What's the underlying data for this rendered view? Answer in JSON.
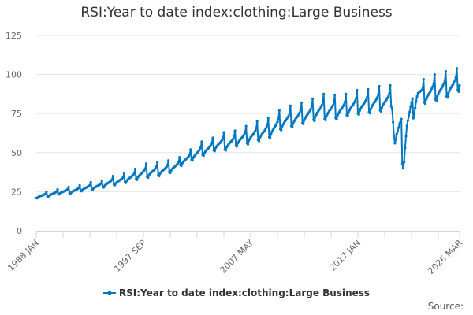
{
  "chart_data": {
    "type": "line",
    "title": "RSI:Year to date index:clothing:Large Business",
    "xlabel": "",
    "ylabel": "",
    "frequency": "monthly",
    "start": "1988 JAN",
    "end": "2026 MAR",
    "x_tick_labels": [
      "1988 JAN",
      "1997 SEP",
      "2007 MAY",
      "2017 JAN",
      "2026 MAR"
    ],
    "y_ticks": [
      0,
      25,
      50,
      75,
      100,
      125
    ],
    "ylim": [
      0,
      125
    ],
    "grid": "horizontal",
    "legend_position": "bottom",
    "series": [
      {
        "name": "RSI:Year to date index:clothing:Large Business",
        "color": "#0077c0",
        "values": [
          21,
          20.8,
          21.5,
          21.8,
          22.1,
          22.3,
          22.5,
          22.7,
          23,
          23.3,
          23.7,
          25,
          22,
          21.8,
          22.5,
          22.9,
          23.2,
          23.5,
          23.7,
          23.9,
          24.3,
          24.6,
          25.1,
          26.5,
          23.5,
          23.3,
          24,
          24.4,
          24.7,
          25,
          25.2,
          25.4,
          25.8,
          26.1,
          26.6,
          28,
          24,
          23.8,
          24.6,
          25,
          25.4,
          25.7,
          25.9,
          26.2,
          26.5,
          26.9,
          27.4,
          29,
          25.5,
          25.3,
          26.2,
          26.6,
          27,
          27.3,
          27.6,
          27.9,
          28.3,
          28.6,
          29.2,
          31,
          26.5,
          26.3,
          27.2,
          27.6,
          28,
          28.3,
          28.6,
          28.9,
          29.3,
          29.6,
          30.2,
          32,
          28,
          27.7,
          28.8,
          29.4,
          29.9,
          30.3,
          30.7,
          31,
          31.5,
          32,
          32.8,
          35,
          29.5,
          29.2,
          30.3,
          30.9,
          31.4,
          31.8,
          32.2,
          32.5,
          33,
          33.5,
          34.3,
          36.5,
          31,
          30.7,
          32,
          32.7,
          33.3,
          33.8,
          34.2,
          34.7,
          35.3,
          35.8,
          36.8,
          39.5,
          33,
          32.6,
          34.2,
          35,
          35.7,
          36.3,
          36.8,
          37.3,
          38,
          38.7,
          39.8,
          43,
          34.5,
          34.1,
          35.6,
          36.4,
          37.1,
          37.6,
          38.1,
          38.6,
          39.3,
          39.9,
          41,
          44,
          35.5,
          35.1,
          36.6,
          37.4,
          38.1,
          38.6,
          39.1,
          39.6,
          40.3,
          40.9,
          42,
          45,
          37.5,
          37.1,
          38.6,
          39.4,
          40.1,
          40.6,
          41.1,
          41.6,
          42.3,
          42.9,
          44,
          47,
          42,
          41.6,
          43.2,
          44,
          44.7,
          45.3,
          45.8,
          46.3,
          47,
          47.7,
          48.8,
          52,
          45.5,
          45,
          46.9,
          47.8,
          48.6,
          49.3,
          49.9,
          50.4,
          51.3,
          52.1,
          53.3,
          57,
          48.5,
          48.1,
          49.8,
          50.7,
          51.5,
          52.1,
          52.7,
          53.2,
          54,
          54.8,
          56,
          59.5,
          51.5,
          51,
          52.9,
          53.8,
          54.6,
          55.3,
          55.9,
          56.4,
          57.3,
          58.1,
          59.3,
          63,
          52,
          51.5,
          53.4,
          54.4,
          55.2,
          56,
          56.6,
          57.2,
          58,
          58.8,
          60.2,
          64,
          54.5,
          54,
          56,
          57,
          57.9,
          58.6,
          59.3,
          59.9,
          60.8,
          61.6,
          63,
          67,
          56,
          55.4,
          57.7,
          58.8,
          59.8,
          60.6,
          61.3,
          62,
          63,
          64,
          65.5,
          70,
          58,
          57.4,
          59.7,
          60.8,
          61.8,
          62.6,
          63.3,
          64,
          65,
          66,
          67.5,
          72,
          60,
          59.3,
          62,
          63.4,
          64.6,
          65.6,
          66.5,
          67.3,
          68.5,
          69.7,
          71.6,
          77,
          65,
          64.4,
          66.8,
          68,
          69,
          70,
          70.7,
          71.5,
          72.5,
          73.6,
          75.2,
          80,
          67,
          66.4,
          68.8,
          70,
          71,
          72,
          72.7,
          73.5,
          74.5,
          75.6,
          77.2,
          82,
          69,
          68.4,
          70.9,
          72.1,
          73.2,
          74.1,
          74.9,
          75.7,
          76.8,
          77.8,
          79.5,
          84.5,
          71,
          70.3,
          73,
          74.3,
          75.5,
          76.4,
          77.3,
          78.1,
          79.3,
          80.4,
          82.2,
          87.5,
          71.5,
          70.9,
          73.4,
          74.6,
          75.7,
          76.6,
          77.4,
          78.2,
          79.3,
          80.3,
          82,
          87,
          72,
          71.4,
          73.9,
          75.1,
          76.2,
          77.1,
          77.9,
          78.7,
          79.8,
          80.8,
          82.5,
          87.5,
          74,
          73.4,
          75.9,
          77.2,
          78.3,
          79.3,
          80.1,
          80.9,
          82,
          83.1,
          84.9,
          90,
          75,
          74.4,
          76.9,
          78.1,
          79.2,
          80.1,
          80.9,
          81.7,
          82.8,
          83.8,
          85.5,
          90.5,
          76,
          75.3,
          78,
          79.3,
          80.5,
          81.4,
          82.3,
          83.1,
          84.3,
          85.4,
          87.2,
          92.5,
          77,
          76.4,
          78.9,
          80.2,
          81.3,
          82.3,
          83.1,
          83.9,
          85,
          86.1,
          87.9,
          93,
          79.6,
          78,
          69.5,
          60.5,
          56,
          58.5,
          62,
          63.5,
          66,
          68.5,
          69.5,
          71.5,
          43,
          40,
          44,
          53,
          60.5,
          67,
          70.5,
          73,
          76,
          79.5,
          82,
          84.7,
          72,
          74.5,
          78.7,
          83,
          86,
          88,
          88.5,
          89,
          89.5,
          90,
          91,
          97,
          82,
          81.3,
          84.2,
          85.6,
          86.9,
          87.9,
          88.8,
          89.7,
          91,
          92.3,
          94.2,
          100,
          84,
          83.3,
          86.2,
          87.6,
          88.9,
          89.9,
          90.8,
          91.7,
          93,
          94.3,
          96.2,
          102,
          86,
          85.3,
          88.2,
          89.6,
          90.9,
          91.9,
          92.8,
          93.7,
          95,
          96.3,
          98.2,
          104,
          90,
          89,
          93
        ]
      }
    ],
    "source_label": "Source:"
  }
}
